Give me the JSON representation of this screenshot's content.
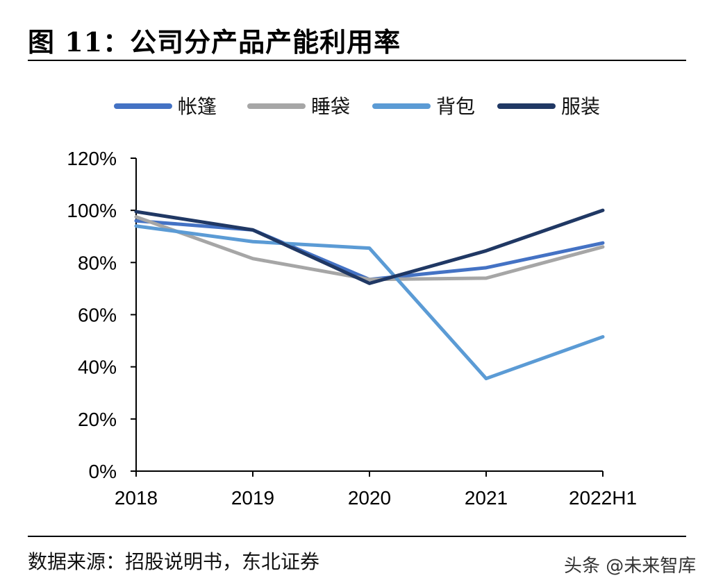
{
  "title": "图 11：公司分产品产能利用率",
  "source": "数据来源：招股说明书，东北证券",
  "watermark": "头条 @未来智库",
  "chart_data": {
    "type": "line",
    "categories": [
      "2018",
      "2019",
      "2020",
      "2021",
      "2022H1"
    ],
    "ylim": [
      0,
      120
    ],
    "yticks": [
      0,
      20,
      40,
      60,
      80,
      100,
      120
    ],
    "ytick_labels": [
      "0%",
      "20%",
      "40%",
      "60%",
      "80%",
      "100%",
      "120%"
    ],
    "grid": false,
    "legend_position": "top",
    "series": [
      {
        "name": "帐篷",
        "color": "#4472c4",
        "values": [
          96,
          92.5,
          73.5,
          78,
          87.5
        ]
      },
      {
        "name": "睡袋",
        "color": "#a6a6a6",
        "values": [
          97.5,
          81.5,
          73.5,
          74,
          86
        ]
      },
      {
        "name": "背包",
        "color": "#5b9bd5",
        "values": [
          94,
          88,
          85.5,
          35.5,
          51.5
        ]
      },
      {
        "name": "服装",
        "color": "#203864",
        "values": [
          99.5,
          92.5,
          72,
          84.5,
          100
        ]
      }
    ]
  }
}
